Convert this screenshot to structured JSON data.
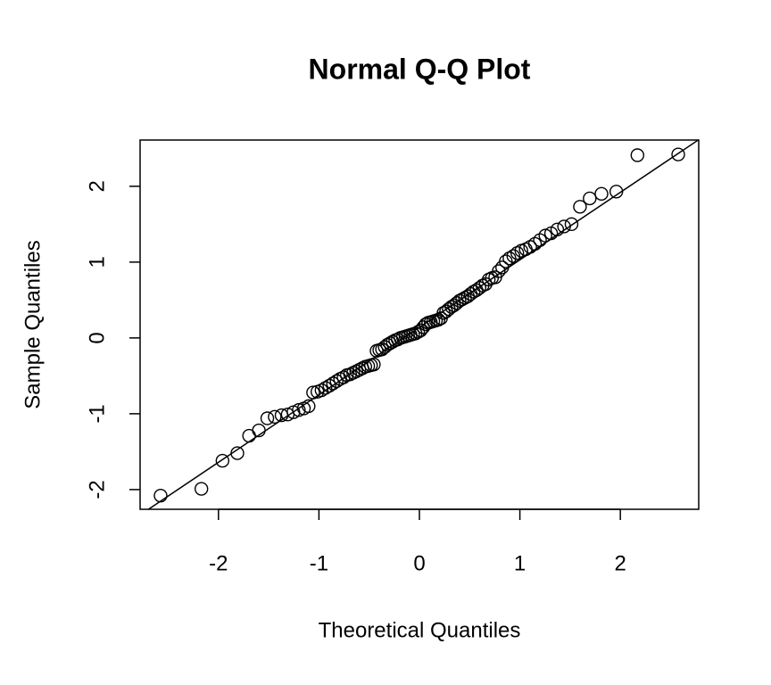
{
  "chart_data": {
    "type": "scatter",
    "title": "Normal Q-Q Plot",
    "x_label": "Theoretical Quantiles",
    "y_label": "Sample Quantiles",
    "x": [
      -2.576,
      -2.17,
      -1.96,
      -1.812,
      -1.695,
      -1.598,
      -1.514,
      -1.44,
      -1.372,
      -1.311,
      -1.254,
      -1.2,
      -1.15,
      -1.103,
      -1.058,
      -1.015,
      -0.974,
      -0.935,
      -0.896,
      -0.86,
      -0.824,
      -0.789,
      -0.755,
      -0.722,
      -0.69,
      -0.659,
      -0.628,
      -0.598,
      -0.568,
      -0.539,
      -0.51,
      -0.482,
      -0.454,
      -0.426,
      -0.399,
      -0.372,
      -0.345,
      -0.319,
      -0.292,
      -0.266,
      -0.24,
      -0.215,
      -0.189,
      -0.164,
      -0.138,
      -0.113,
      -0.088,
      -0.063,
      -0.038,
      -0.013,
      0.013,
      0.038,
      0.063,
      0.088,
      0.113,
      0.138,
      0.164,
      0.189,
      0.215,
      0.24,
      0.266,
      0.292,
      0.319,
      0.345,
      0.372,
      0.399,
      0.426,
      0.454,
      0.482,
      0.51,
      0.539,
      0.568,
      0.598,
      0.628,
      0.659,
      0.69,
      0.722,
      0.755,
      0.789,
      0.824,
      0.86,
      0.896,
      0.935,
      0.974,
      1.015,
      1.058,
      1.103,
      1.15,
      1.2,
      1.254,
      1.311,
      1.372,
      1.44,
      1.514,
      1.598,
      1.695,
      1.812,
      1.96,
      2.17,
      2.576
    ],
    "values": [
      -2.08,
      -1.99,
      -1.62,
      -1.52,
      -1.29,
      -1.22,
      -1.06,
      -1.04,
      -1.02,
      -1.01,
      -0.98,
      -0.95,
      -0.93,
      -0.9,
      -0.72,
      -0.71,
      -0.69,
      -0.66,
      -0.63,
      -0.6,
      -0.57,
      -0.54,
      -0.52,
      -0.49,
      -0.48,
      -0.46,
      -0.44,
      -0.42,
      -0.4,
      -0.38,
      -0.37,
      -0.36,
      -0.35,
      -0.17,
      -0.16,
      -0.15,
      -0.12,
      -0.09,
      -0.07,
      -0.05,
      -0.03,
      -0.02,
      0.0,
      0.01,
      0.02,
      0.03,
      0.04,
      0.05,
      0.06,
      0.08,
      0.1,
      0.14,
      0.18,
      0.2,
      0.21,
      0.22,
      0.23,
      0.24,
      0.26,
      0.33,
      0.35,
      0.38,
      0.41,
      0.43,
      0.46,
      0.49,
      0.51,
      0.53,
      0.55,
      0.58,
      0.61,
      0.63,
      0.66,
      0.69,
      0.71,
      0.77,
      0.79,
      0.8,
      0.88,
      0.93,
      1.01,
      1.05,
      1.08,
      1.12,
      1.15,
      1.17,
      1.2,
      1.24,
      1.29,
      1.35,
      1.38,
      1.43,
      1.47,
      1.5,
      1.73,
      1.84,
      1.9,
      1.93,
      2.41,
      2.42
    ],
    "color": "#000000",
    "line": {
      "intercept": 0.14,
      "slope": 0.89
    },
    "xlim": [
      -2.78,
      2.78
    ],
    "ylim": [
      -2.26,
      2.61
    ],
    "xticks": [
      -2,
      -1,
      0,
      1,
      2
    ],
    "yticks": [
      -2,
      -1,
      0,
      1,
      2
    ]
  }
}
